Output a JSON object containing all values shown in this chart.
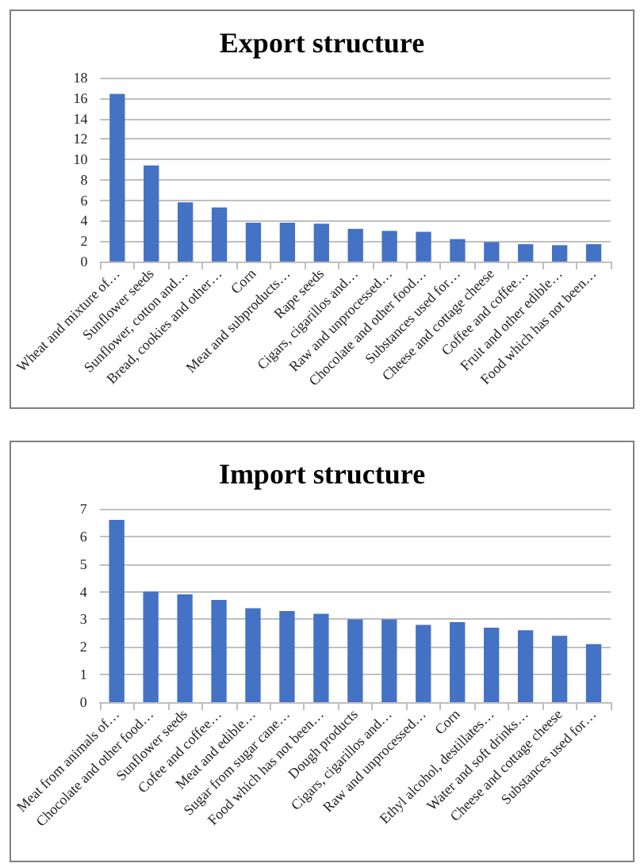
{
  "chart_data": [
    {
      "type": "bar",
      "title": "Export structure",
      "categories": [
        "Wheat and mixture of…",
        "Sunflower seeds",
        "Sunflower, cotton and…",
        "Bread, cookies and other…",
        "Corn",
        "Meat and subproducts…",
        "Rape seeds",
        "Cigars, cigarillos and…",
        "Raw and unprocessed…",
        "Chocolate and other food…",
        "Substances used for…",
        "Cheese and cottage cheese",
        "Coffee and coffee…",
        "Fruit and other edible…",
        "Food which has not been…"
      ],
      "values": [
        16.4,
        9.4,
        5.8,
        5.3,
        3.8,
        3.8,
        3.7,
        3.2,
        3.0,
        2.9,
        2.2,
        1.9,
        1.7,
        1.6,
        1.7
      ],
      "color": "#4472c4",
      "ylim": [
        0,
        18
      ],
      "yticks": [
        0,
        2,
        4,
        6,
        8,
        10,
        12,
        14,
        16,
        18
      ],
      "grid": "y"
    },
    {
      "type": "bar",
      "title": "Import structure",
      "categories": [
        "Meat from animals of…",
        "Chocolate and other food…",
        "Sunflower seeds",
        "Cofee and coffee…",
        "Meat and edible…",
        "Sugar from sugar cane…",
        "Food which has not been…",
        "Dough products",
        "Cigars, cigarillos and…",
        "Raw and unprocessed…",
        "Corn",
        "Ethyl alcohol, destillates…",
        "Water and soft drinks…",
        "Cheese and cottage cheese",
        "Substances used for…"
      ],
      "values": [
        6.6,
        4.0,
        3.9,
        3.7,
        3.4,
        3.3,
        3.2,
        3.0,
        3.0,
        2.8,
        2.9,
        2.7,
        2.6,
        2.4,
        2.1
      ],
      "color": "#4472c4",
      "ylim": [
        0,
        7
      ],
      "yticks": [
        0,
        1,
        2,
        3,
        4,
        5,
        6,
        7
      ],
      "grid": "y"
    }
  ]
}
